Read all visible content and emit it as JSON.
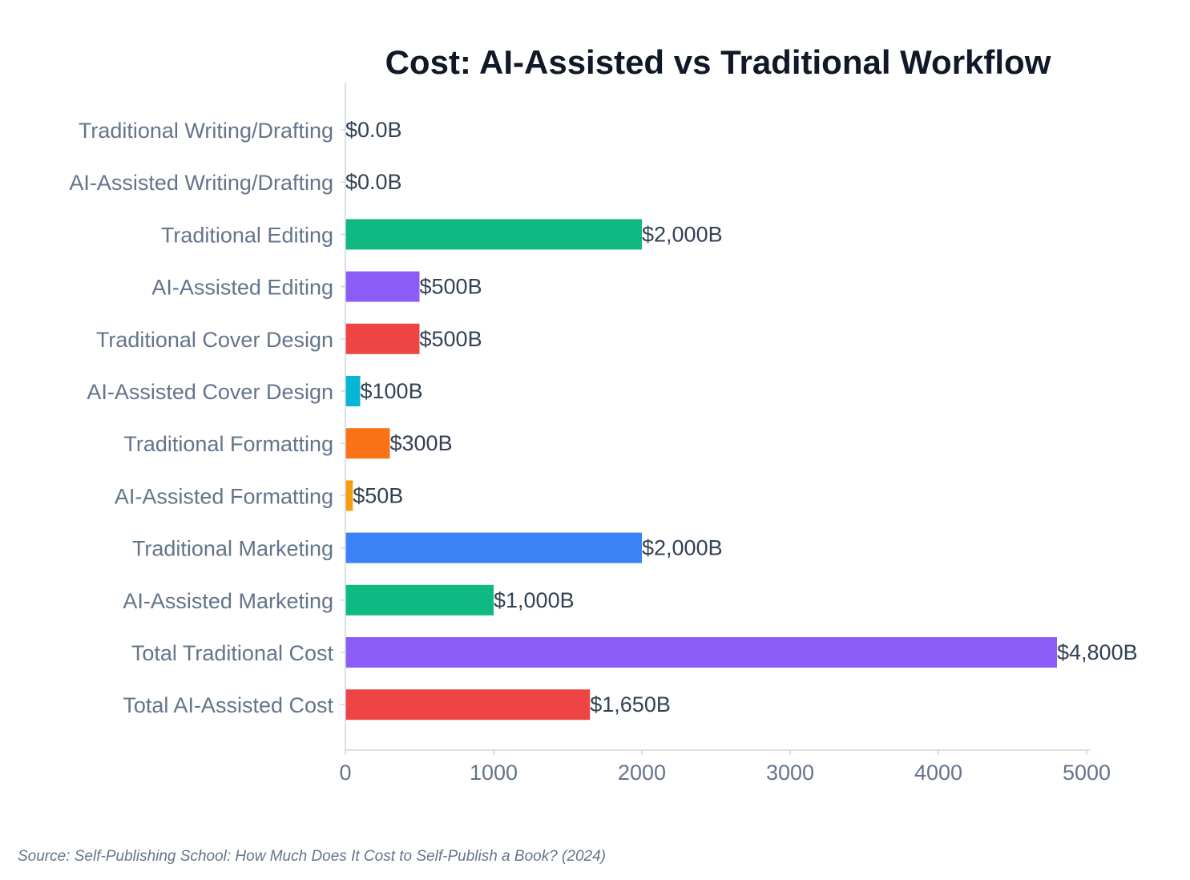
{
  "chart_data": {
    "type": "bar",
    "orientation": "horizontal",
    "title": "Cost: AI-Assisted vs Traditional Workflow",
    "xlabel": "",
    "ylabel": "",
    "xlim": [
      0,
      5000
    ],
    "x_ticks": [
      "0",
      "1000",
      "2000",
      "3000",
      "4000",
      "5000"
    ],
    "grid": false,
    "categories": [
      "Traditional Writing/Drafting",
      "AI-Assisted Writing/Drafting",
      "Traditional Editing",
      "AI-Assisted Editing",
      "Traditional Cover Design",
      "AI-Assisted Cover Design",
      "Traditional Formatting",
      "AI-Assisted Formatting",
      "Traditional Marketing",
      "AI-Assisted Marketing",
      "Total Traditional Cost",
      "Total AI-Assisted Cost"
    ],
    "values": [
      0,
      0,
      2000,
      500,
      500,
      100,
      300,
      50,
      2000,
      1000,
      4800,
      1650
    ],
    "data_labels": [
      "$0.0B",
      "$0.0B",
      "$2,000B",
      "$500B",
      "$500B",
      "$100B",
      "$300B",
      "$50B",
      "$2,000B",
      "$1,000B",
      "$4,800B",
      "$1,650B"
    ],
    "colors": [
      "#10b981",
      "#8b5cf6",
      "#10b981",
      "#8b5cf6",
      "#ef4444",
      "#06b6d4",
      "#f97316",
      "#f59e0b",
      "#3b82f6",
      "#10b981",
      "#8b5cf6",
      "#ef4444"
    ]
  },
  "source": "Source: Self-Publishing School: How Much Does It Cost to Self-Publish a Book? (2024)"
}
